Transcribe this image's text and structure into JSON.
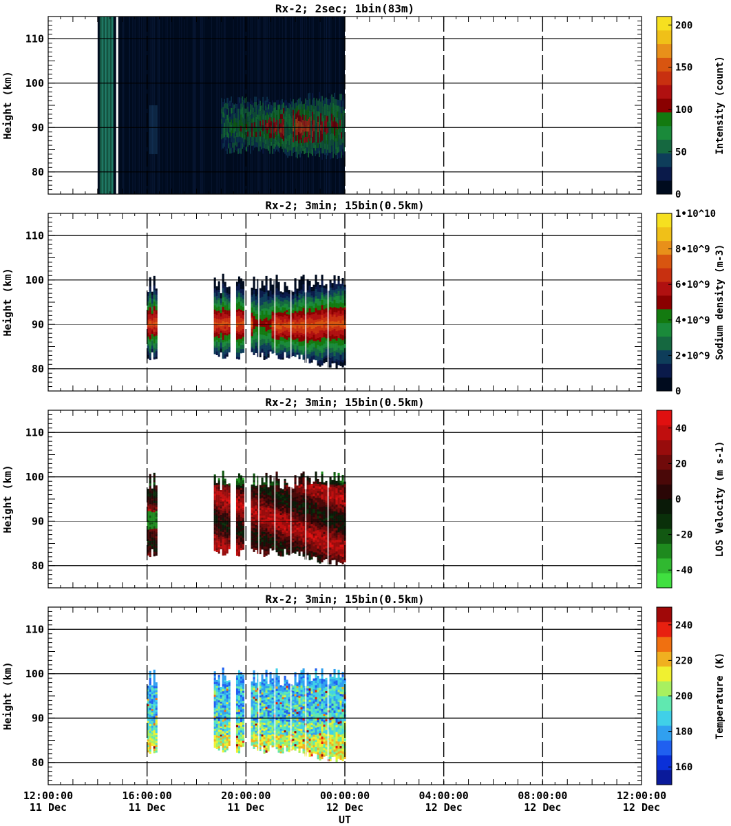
{
  "figure": {
    "xlabel": "UT",
    "time_ticks": [
      {
        "time": "12:00:00",
        "date": "11 Dec"
      },
      {
        "time": "16:00:00",
        "date": "11 Dec"
      },
      {
        "time": "20:00:00",
        "date": "11 Dec"
      },
      {
        "time": "00:00:00",
        "date": "12 Dec"
      },
      {
        "time": "04:00:00",
        "date": "12 Dec"
      },
      {
        "time": "08:00:00",
        "date": "12 Dec"
      },
      {
        "time": "12:00:00",
        "date": "12 Dec"
      }
    ]
  },
  "chart_data": [
    {
      "type": "heatmap",
      "title": "Rx-2;  2sec; 1bin(83m)",
      "ylabel": "Height (km)",
      "ylim": [
        75,
        115
      ],
      "yticks": [
        "80",
        "90",
        "100",
        "110"
      ],
      "xlim_hours_UT": [
        12,
        36
      ],
      "data_extent_hours_UT": [
        14.0,
        24.0
      ],
      "gaps_hours_UT": [
        14.75
      ],
      "layer": {
        "center_km": 90,
        "top_km": 97,
        "bottom_km": 84,
        "start_hours_UT": 19.0,
        "peak_hours_UT": 22.0
      },
      "colorbar": {
        "label": "Intensity (count)",
        "range": [
          0,
          210
        ],
        "ticks": [
          "0",
          "50",
          "100",
          "150",
          "200"
        ],
        "colors": [
          "#000b1e",
          "#0a1a4a",
          "#0e3d5a",
          "#156840",
          "#1a8a3a",
          "#137a10",
          "#8a0000",
          "#b01010",
          "#c83010",
          "#d85510",
          "#e8901a",
          "#f0c018",
          "#f6e020"
        ]
      }
    },
    {
      "type": "heatmap",
      "title": "Rx-2; 3min; 15bin(0.5km)",
      "ylabel": "Height (km)",
      "ylim": [
        75,
        115
      ],
      "yticks": [
        "80",
        "90",
        "100",
        "110"
      ],
      "xlim_hours_UT": [
        12,
        36
      ],
      "blocks_hours_UT": [
        [
          16.0,
          16.35
        ],
        [
          18.7,
          19.3
        ],
        [
          19.6,
          19.9
        ],
        [
          20.2,
          24.0
        ]
      ],
      "colorbar": {
        "label": "Sodium density (m-3)",
        "range": [
          0,
          10000000000.0
        ],
        "ticks": [
          "0",
          "2•10^9",
          "4•10^9",
          "6•10^9",
          "8•10^9",
          "1•10^10"
        ],
        "colors": [
          "#000b1e",
          "#0a1a4a",
          "#0e3d5a",
          "#156840",
          "#1a8a3a",
          "#137a10",
          "#8a0000",
          "#b01010",
          "#c83010",
          "#d85510",
          "#e8901a",
          "#f0c018",
          "#f6e020"
        ]
      }
    },
    {
      "type": "heatmap",
      "title": "Rx-2; 3min; 15bin(0.5km)",
      "ylabel": "Height (km)",
      "ylim": [
        75,
        115
      ],
      "yticks": [
        "80",
        "90",
        "100",
        "110"
      ],
      "xlim_hours_UT": [
        12,
        36
      ],
      "blocks_hours_UT": [
        [
          16.0,
          16.35
        ],
        [
          18.7,
          19.3
        ],
        [
          19.6,
          19.9
        ],
        [
          20.2,
          24.0
        ]
      ],
      "colorbar": {
        "label": "LOS Velocity (m s-1)",
        "range": [
          -50,
          50
        ],
        "ticks": [
          "-40",
          "-20",
          "0",
          "20",
          "40"
        ],
        "colors": [
          "#40e040",
          "#30b830",
          "#1e8a1e",
          "#125812",
          "#0a300a",
          "#0a1a08",
          "#2a0606",
          "#4a0808",
          "#700a0a",
          "#980c0c",
          "#c00e0e",
          "#e01010"
        ]
      }
    },
    {
      "type": "heatmap",
      "title": "Rx-2; 3min; 15bin(0.5km)",
      "ylabel": "Height (km)",
      "ylim": [
        75,
        115
      ],
      "yticks": [
        "80",
        "90",
        "100",
        "110"
      ],
      "xlim_hours_UT": [
        12,
        36
      ],
      "blocks_hours_UT": [
        [
          16.0,
          16.35
        ],
        [
          18.7,
          19.3
        ],
        [
          19.6,
          19.9
        ],
        [
          20.2,
          24.0
        ]
      ],
      "colorbar": {
        "label": "Temperature (K)",
        "range": [
          150,
          250
        ],
        "ticks": [
          "160",
          "180",
          "200",
          "220",
          "240"
        ],
        "colors": [
          "#0a1a9a",
          "#0a30d8",
          "#2060f0",
          "#30a0f0",
          "#40d0e8",
          "#60e8b0",
          "#a8f060",
          "#f0f030",
          "#f0b020",
          "#f07010",
          "#e82010",
          "#a00808"
        ]
      }
    }
  ]
}
